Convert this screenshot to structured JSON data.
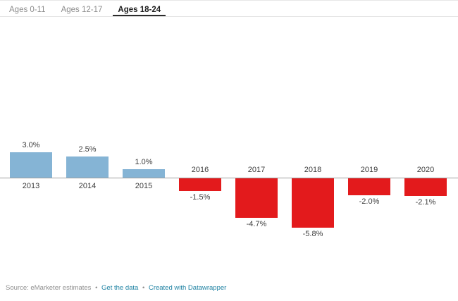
{
  "header": {
    "tabs": [
      {
        "label": "Ages 0-11",
        "active": false
      },
      {
        "label": "Ages 12-17",
        "active": false
      },
      {
        "label": "Ages 18-24",
        "active": true
      }
    ]
  },
  "chart_data": {
    "type": "bar",
    "categories": [
      "2013",
      "2014",
      "2015",
      "2016",
      "2017",
      "2018",
      "2019",
      "2020"
    ],
    "values": [
      3.0,
      2.5,
      1.0,
      -1.5,
      -4.7,
      -5.8,
      -2.0,
      -2.1
    ],
    "value_labels": [
      "3.0%",
      "2.5%",
      "1.0%",
      "-1.5%",
      "-4.7%",
      "-5.8%",
      "-2.0%",
      "-2.1%"
    ],
    "unit": "%",
    "title": "",
    "xlabel": "",
    "ylabel": "",
    "ylim": [
      -6.5,
      3.5
    ],
    "grid": false,
    "legend": "none",
    "positive_color": "#85b4d5",
    "negative_color": "#e31a1c",
    "axis_color": "#9d9d9d",
    "label_color": "#3d3d3d"
  },
  "footer": {
    "source_label": "Source: eMarketer estimates",
    "separator": "•",
    "links": [
      {
        "label": "Get the data",
        "color": "#1d81a2"
      },
      {
        "label": "Created with Datawrapper",
        "color": "#1d81a2"
      }
    ]
  }
}
